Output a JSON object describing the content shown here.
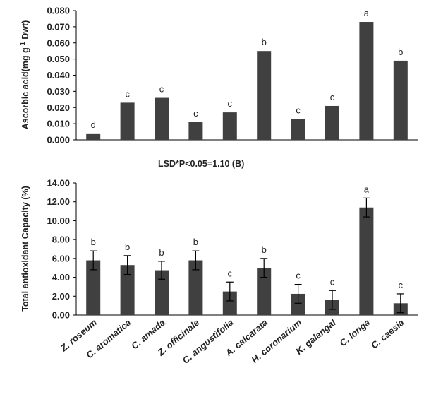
{
  "colors": {
    "bar": "#404040",
    "axis": "#000000",
    "text": "#222222"
  },
  "categories": [
    "Z. roseum",
    "C. aromatica",
    "C. amada",
    "Z. officinale",
    "C. angustifolia",
    "A. calcarata",
    "H. coronarium",
    "K. galangal",
    "C. longa",
    "C. caesia"
  ],
  "chart_data": [
    {
      "type": "bar",
      "ylabel_main": "Ascorbic  acid(mg g",
      "ylabel_sup": "-1",
      "ylabel_tail": " Dwt)",
      "ylim": [
        0,
        0.08
      ],
      "yticks": [
        "0.000",
        "0.010",
        "0.020",
        "0.030",
        "0.040",
        "0.050",
        "0.060",
        "0.070",
        "0.080"
      ],
      "values": [
        0.004,
        0.023,
        0.026,
        0.011,
        0.017,
        0.055,
        0.013,
        0.021,
        0.073,
        0.049
      ],
      "letters": [
        "d",
        "c",
        "c",
        "c",
        "c",
        "b",
        "c",
        "c",
        "a",
        "b"
      ],
      "annotation": "LSD*P<0.05=1.10 (B)"
    },
    {
      "type": "bar",
      "ylabel": "Total antioxidant Capacity (%)",
      "ylim": [
        0,
        14
      ],
      "yticks": [
        "0.00",
        "2.00",
        "4.00",
        "6.00",
        "8.00",
        "10.00",
        "12.00",
        "14.00"
      ],
      "values": [
        5.8,
        5.3,
        4.75,
        5.8,
        2.5,
        5.0,
        2.25,
        1.6,
        11.4,
        1.25
      ],
      "errors": [
        1.0,
        1.0,
        0.95,
        1.0,
        1.0,
        1.0,
        1.0,
        1.0,
        1.0,
        1.0
      ],
      "letters": [
        "b",
        "b",
        "b",
        "b",
        "c",
        "b",
        "c",
        "c",
        "a",
        "c"
      ]
    }
  ]
}
